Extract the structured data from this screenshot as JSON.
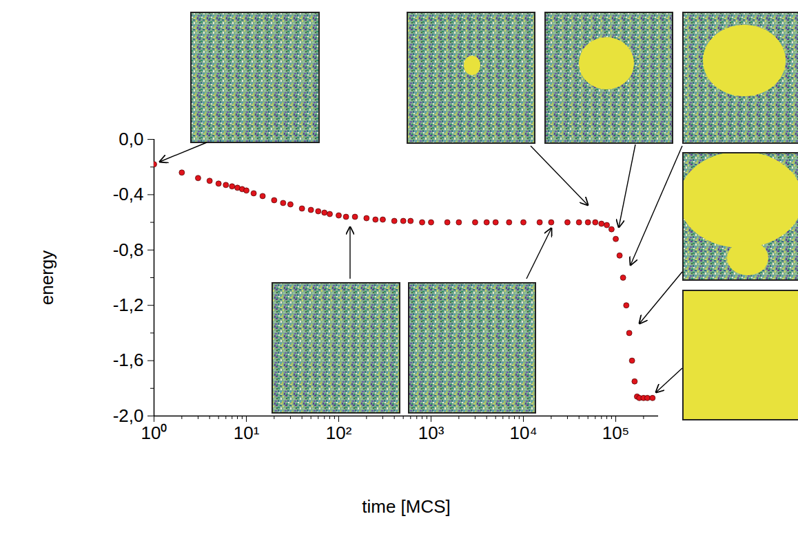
{
  "chart_data": {
    "type": "scatter",
    "x_label": "time [MCS]",
    "y_label": "energy",
    "log": "x",
    "marker": "circle",
    "color": "#e0141c",
    "x": [
      1,
      2,
      3,
      4,
      5,
      6,
      7,
      8,
      9,
      10,
      12,
      15,
      20,
      25,
      30,
      40,
      50,
      60,
      70,
      80,
      100,
      120,
      150,
      200,
      250,
      300,
      400,
      500,
      600,
      800,
      1000,
      1500,
      2000,
      3000,
      4000,
      5000,
      7000,
      10000,
      15000,
      20000,
      30000,
      40000,
      50000,
      60000,
      70000,
      80000,
      90000,
      100000,
      110000,
      120000,
      130000,
      140000,
      150000,
      160000,
      170000,
      180000,
      200000,
      220000,
      250000
    ],
    "values": [
      -0.18,
      -0.24,
      -0.28,
      -0.3,
      -0.32,
      -0.33,
      -0.34,
      -0.35,
      -0.36,
      -0.37,
      -0.39,
      -0.41,
      -0.44,
      -0.46,
      -0.47,
      -0.5,
      -0.51,
      -0.52,
      -0.53,
      -0.54,
      -0.55,
      -0.56,
      -0.56,
      -0.57,
      -0.58,
      -0.58,
      -0.59,
      -0.59,
      -0.59,
      -0.6,
      -0.6,
      -0.6,
      -0.6,
      -0.6,
      -0.6,
      -0.6,
      -0.6,
      -0.6,
      -0.6,
      -0.6,
      -0.6,
      -0.6,
      -0.6,
      -0.6,
      -0.61,
      -0.62,
      -0.65,
      -0.72,
      -0.84,
      -1.0,
      -1.2,
      -1.4,
      -1.6,
      -1.75,
      -1.86,
      -1.87,
      -1.87,
      -1.87,
      -1.87
    ],
    "xlim": [
      1,
      290000
    ],
    "ylim": [
      -2.0,
      0.0
    ],
    "xticks": [
      {
        "value": 1,
        "label": "10⁰"
      },
      {
        "value": 10,
        "label": "10¹"
      },
      {
        "value": 100,
        "label": "10²"
      },
      {
        "value": 1000,
        "label": "10³"
      },
      {
        "value": 10000,
        "label": "10⁴"
      },
      {
        "value": 100000,
        "label": "10⁵"
      }
    ],
    "yticks": [
      {
        "value": 0.0,
        "label": "0,0"
      },
      {
        "value": -0.4,
        "label": "-0,4"
      },
      {
        "value": -0.8,
        "label": "-0,8"
      },
      {
        "value": -1.2,
        "label": "-1,2"
      },
      {
        "value": -1.6,
        "label": "-1,6"
      },
      {
        "value": -2.0,
        "label": "-2,0"
      }
    ]
  }
}
